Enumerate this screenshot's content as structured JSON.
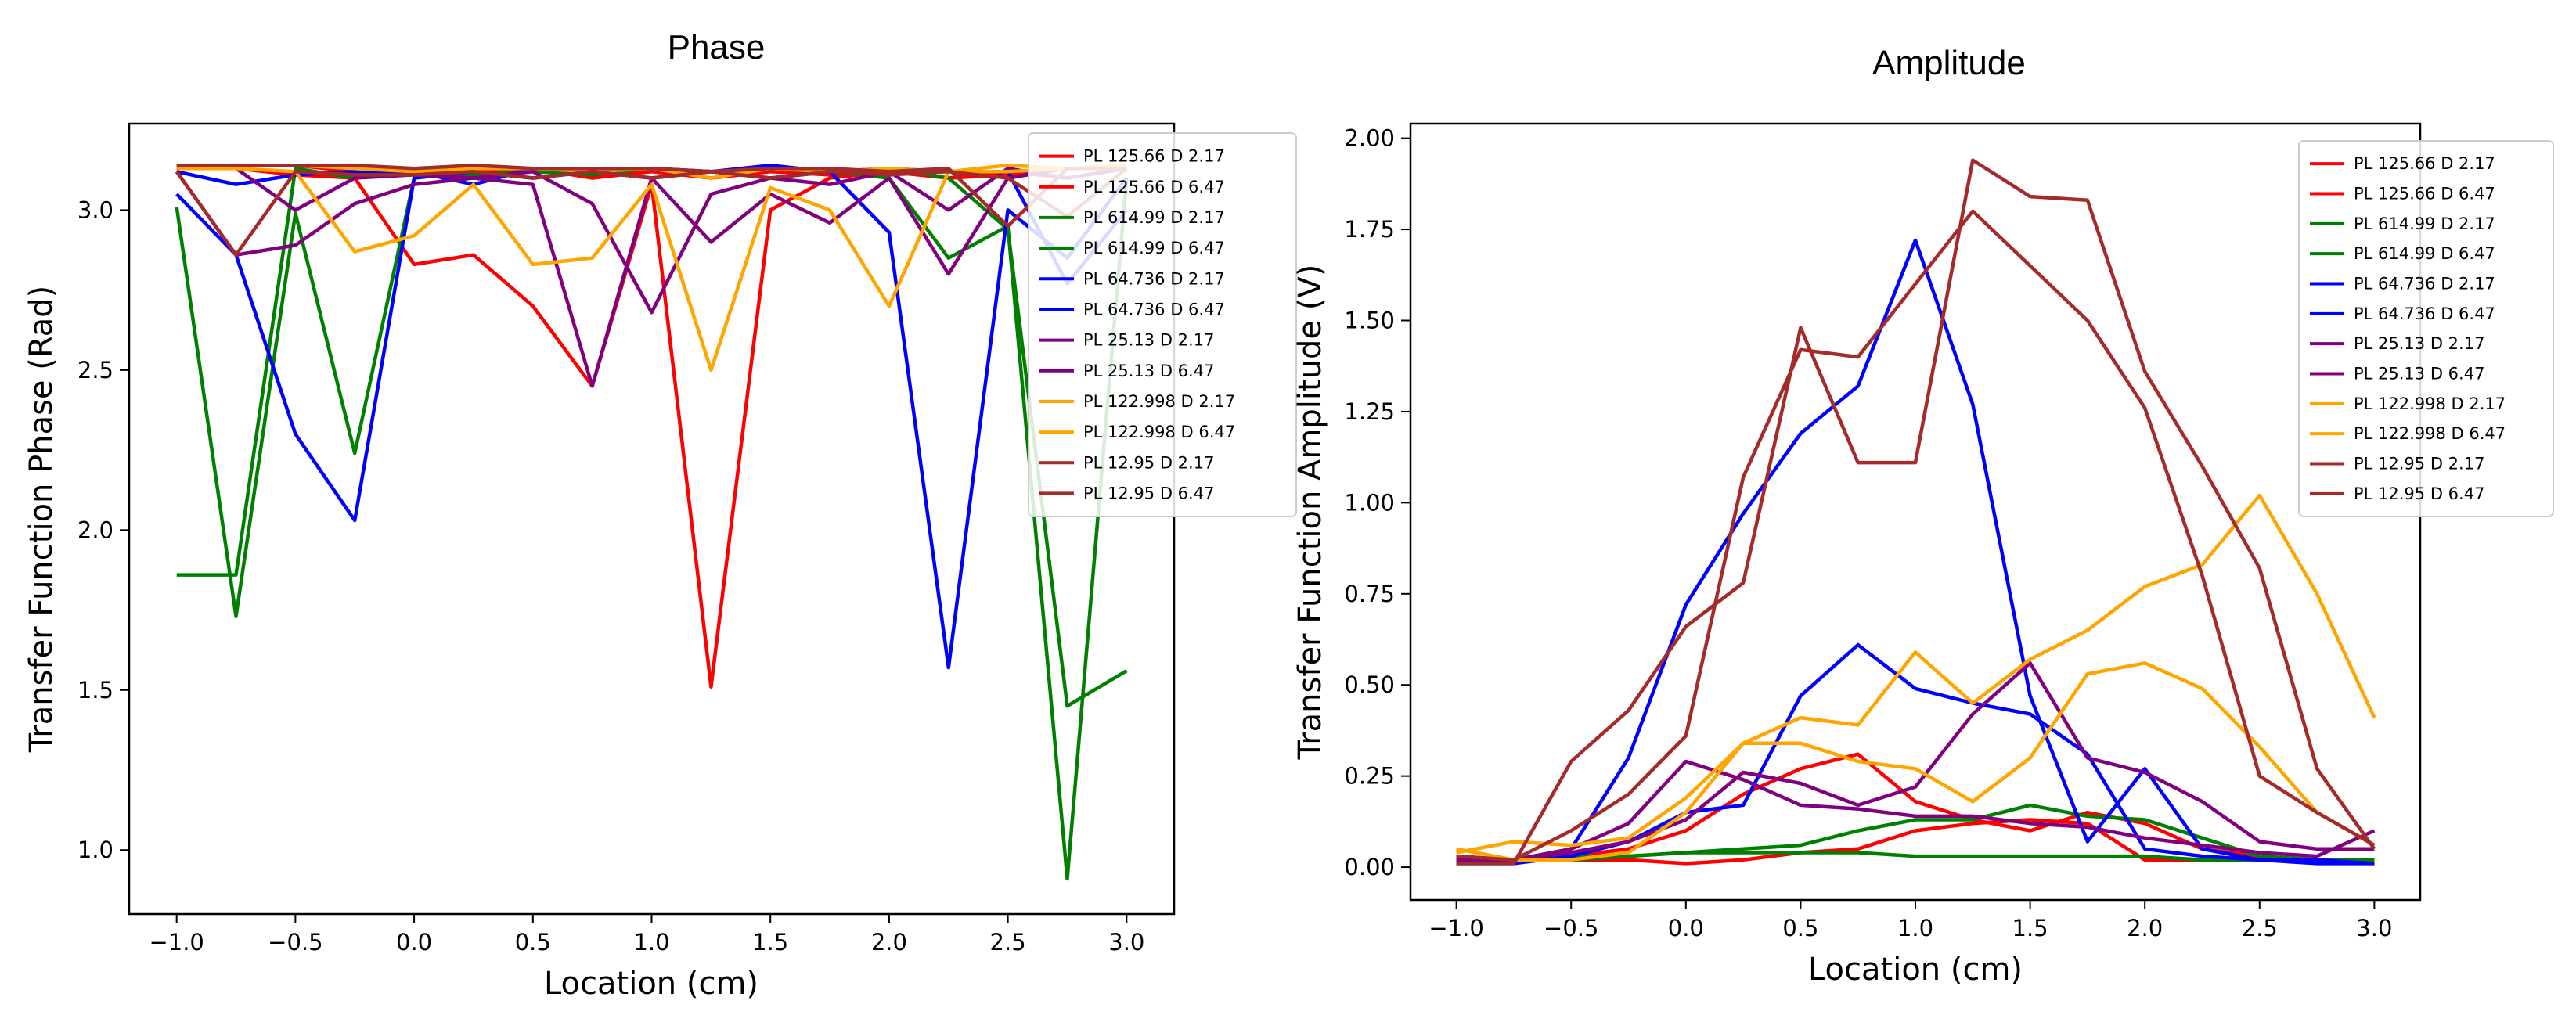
{
  "chart_data": [
    {
      "type": "line",
      "title": "Phase",
      "xlabel": "Location (cm)",
      "ylabel": "Transfer Function Phase (Rad)",
      "xlim": [
        -1.2,
        3.2
      ],
      "ylim": [
        0.8,
        3.27
      ],
      "xticks": [
        -1.0,
        -0.5,
        0.0,
        0.5,
        1.0,
        1.5,
        2.0,
        2.5,
        3.0
      ],
      "yticks": [
        1.0,
        1.5,
        2.0,
        2.5,
        3.0
      ],
      "tick_decimals": {
        "x": 1,
        "y": 1
      },
      "x": [
        -1.0,
        -0.75,
        -0.5,
        -0.25,
        0.0,
        0.25,
        0.5,
        0.75,
        1.0,
        1.25,
        1.5,
        1.75,
        2.0,
        2.25,
        2.5,
        2.75,
        3.0
      ],
      "legend_position": "top-right",
      "grid": false,
      "series": [
        {
          "name": "PL 125.66 D 2.17",
          "color": "#ff0000",
          "values": [
            3.13,
            3.13,
            3.11,
            3.1,
            2.83,
            2.86,
            2.7,
            2.45,
            3.08,
            1.51,
            3.0,
            3.1,
            3.12,
            3.1,
            3.11,
            3.13,
            3.13
          ]
        },
        {
          "name": "PL 125.66 D 6.47",
          "color": "#ff0000",
          "values": [
            3.14,
            3.14,
            3.14,
            3.12,
            3.13,
            3.12,
            3.13,
            3.1,
            3.12,
            3.1,
            3.12,
            3.11,
            3.12,
            3.1,
            3.12,
            3.1,
            3.13
          ]
        },
        {
          "name": "PL 614.99 D 2.17",
          "color": "#008000",
          "values": [
            3.01,
            1.73,
            2.99,
            2.24,
            3.1,
            3.12,
            3.1,
            3.12,
            3.1,
            3.12,
            3.1,
            3.12,
            3.1,
            2.85,
            2.95,
            0.91,
            3.1
          ]
        },
        {
          "name": "PL 614.99 D 6.47",
          "color": "#008000",
          "values": [
            1.86,
            1.86,
            3.13,
            3.1,
            3.12,
            3.11,
            3.12,
            3.11,
            3.13,
            3.12,
            3.13,
            3.12,
            3.13,
            3.1,
            2.94,
            1.45,
            1.56
          ]
        },
        {
          "name": "PL 64.736 D 2.17",
          "color": "#0000ff",
          "values": [
            3.05,
            2.86,
            2.3,
            2.03,
            3.1,
            3.12,
            3.1,
            3.12,
            3.1,
            3.12,
            3.1,
            3.12,
            2.93,
            1.57,
            3.0,
            2.85,
            3.1
          ]
        },
        {
          "name": "PL 64.736 D 6.47",
          "color": "#0000ff",
          "values": [
            3.12,
            3.08,
            3.11,
            3.12,
            3.12,
            3.08,
            3.13,
            3.12,
            3.13,
            3.12,
            3.14,
            3.12,
            3.13,
            3.12,
            3.12,
            2.77,
            3.0
          ]
        },
        {
          "name": "PL 25.13 D 2.17",
          "color": "#800080",
          "values": [
            3.12,
            2.86,
            2.89,
            3.02,
            3.08,
            3.1,
            3.08,
            2.45,
            3.1,
            2.9,
            3.05,
            2.96,
            3.1,
            2.8,
            3.1,
            3.13,
            3.13
          ]
        },
        {
          "name": "PL 25.13 D 6.47",
          "color": "#800080",
          "values": [
            3.14,
            3.13,
            3.0,
            3.1,
            3.11,
            3.1,
            3.12,
            3.02,
            2.68,
            3.05,
            3.1,
            3.08,
            3.12,
            3.0,
            3.13,
            3.1,
            3.13
          ]
        },
        {
          "name": "PL 122.998 D 2.17",
          "color": "#ffa500",
          "values": [
            3.13,
            3.13,
            3.12,
            2.87,
            2.92,
            3.08,
            2.83,
            2.85,
            3.08,
            2.5,
            3.07,
            3.0,
            2.7,
            3.12,
            3.12,
            3.13,
            3.13
          ]
        },
        {
          "name": "PL 122.998 D 6.47",
          "color": "#ffa500",
          "values": [
            3.14,
            3.14,
            3.14,
            3.13,
            3.12,
            3.13,
            3.13,
            3.12,
            3.13,
            3.1,
            3.13,
            3.12,
            3.13,
            3.12,
            3.14,
            3.13,
            3.14
          ]
        },
        {
          "name": "PL 12.95 D 2.17",
          "color": "#a52a2a",
          "values": [
            3.12,
            2.86,
            3.12,
            3.11,
            3.11,
            3.12,
            3.1,
            3.12,
            3.1,
            3.12,
            3.1,
            3.12,
            3.11,
            3.12,
            3.1,
            2.98,
            3.13
          ]
        },
        {
          "name": "PL 12.95 D 6.47",
          "color": "#a52a2a",
          "values": [
            3.14,
            3.14,
            3.14,
            3.14,
            3.13,
            3.14,
            3.13,
            3.13,
            3.13,
            3.12,
            3.13,
            3.13,
            3.12,
            3.13,
            2.95,
            3.13,
            3.13
          ]
        }
      ]
    },
    {
      "type": "line",
      "title": "Amplitude",
      "xlabel": "Location (cm)",
      "ylabel": "Transfer Function Amplitude (V)",
      "xlim": [
        -1.2,
        3.2
      ],
      "ylim": [
        -0.09,
        2.04
      ],
      "xticks": [
        -1.0,
        -0.5,
        0.0,
        0.5,
        1.0,
        1.5,
        2.0,
        2.5,
        3.0
      ],
      "yticks": [
        0.0,
        0.25,
        0.5,
        0.75,
        1.0,
        1.25,
        1.5,
        1.75,
        2.0
      ],
      "tick_decimals": {
        "x": 1,
        "y": 2
      },
      "x": [
        -1.0,
        -0.75,
        -0.5,
        -0.25,
        0.0,
        0.25,
        0.5,
        0.75,
        1.0,
        1.25,
        1.5,
        1.75,
        2.0,
        2.25,
        2.5,
        2.75,
        3.0
      ],
      "legend_position": "top-right",
      "grid": false,
      "series": [
        {
          "name": "PL 125.66 D 2.17",
          "color": "#ff0000",
          "values": [
            0.03,
            0.02,
            0.03,
            0.05,
            0.1,
            0.2,
            0.27,
            0.31,
            0.18,
            0.13,
            0.1,
            0.15,
            0.12,
            0.05,
            0.03,
            0.02,
            0.02
          ]
        },
        {
          "name": "PL 125.66 D 6.47",
          "color": "#ff0000",
          "values": [
            0.02,
            0.02,
            0.02,
            0.02,
            0.01,
            0.02,
            0.04,
            0.05,
            0.1,
            0.12,
            0.13,
            0.12,
            0.02,
            0.02,
            0.02,
            0.02,
            0.02
          ]
        },
        {
          "name": "PL 614.99 D 2.17",
          "color": "#008000",
          "values": [
            0.02,
            0.02,
            0.03,
            0.03,
            0.04,
            0.05,
            0.06,
            0.1,
            0.13,
            0.13,
            0.17,
            0.14,
            0.13,
            0.08,
            0.03,
            0.02,
            0.02
          ]
        },
        {
          "name": "PL 614.99 D 6.47",
          "color": "#008000",
          "values": [
            0.02,
            0.02,
            0.02,
            0.03,
            0.04,
            0.04,
            0.04,
            0.04,
            0.03,
            0.03,
            0.03,
            0.03,
            0.03,
            0.02,
            0.02,
            0.02,
            0.02
          ]
        },
        {
          "name": "PL 64.736 D 2.17",
          "color": "#0000ff",
          "values": [
            0.01,
            0.02,
            0.05,
            0.3,
            0.72,
            0.97,
            1.19,
            1.32,
            1.72,
            1.27,
            0.47,
            0.07,
            0.27,
            0.05,
            0.02,
            0.01,
            0.01
          ]
        },
        {
          "name": "PL 64.736 D 6.47",
          "color": "#0000ff",
          "values": [
            0.01,
            0.01,
            0.03,
            0.07,
            0.15,
            0.17,
            0.47,
            0.61,
            0.49,
            0.45,
            0.42,
            0.31,
            0.05,
            0.03,
            0.02,
            0.02,
            0.01
          ]
        },
        {
          "name": "PL 25.13 D 2.17",
          "color": "#800080",
          "values": [
            0.03,
            0.02,
            0.05,
            0.12,
            0.29,
            0.24,
            0.17,
            0.16,
            0.14,
            0.14,
            0.12,
            0.11,
            0.08,
            0.06,
            0.04,
            0.03,
            0.1
          ]
        },
        {
          "name": "PL 25.13 D 6.47",
          "color": "#800080",
          "values": [
            0.02,
            0.02,
            0.04,
            0.07,
            0.13,
            0.26,
            0.23,
            0.17,
            0.22,
            0.42,
            0.56,
            0.3,
            0.26,
            0.18,
            0.07,
            0.05,
            0.05
          ]
        },
        {
          "name": "PL 122.998 D 2.17",
          "color": "#ffa500",
          "values": [
            0.05,
            0.02,
            0.02,
            0.04,
            0.15,
            0.34,
            0.41,
            0.39,
            0.59,
            0.45,
            0.57,
            0.65,
            0.77,
            0.83,
            1.02,
            0.75,
            0.41
          ]
        },
        {
          "name": "PL 122.998 D 6.47",
          "color": "#ffa500",
          "values": [
            0.04,
            0.07,
            0.06,
            0.08,
            0.19,
            0.34,
            0.34,
            0.29,
            0.27,
            0.18,
            0.3,
            0.53,
            0.56,
            0.49,
            0.33,
            0.15,
            0.06
          ]
        },
        {
          "name": "PL 12.95 D 2.17",
          "color": "#a52a2a",
          "values": [
            0.03,
            0.02,
            0.1,
            0.2,
            0.36,
            1.07,
            1.42,
            1.4,
            1.6,
            1.8,
            1.65,
            1.5,
            1.26,
            0.8,
            0.25,
            0.15,
            0.06
          ]
        },
        {
          "name": "PL 12.95 D 6.47",
          "color": "#a52a2a",
          "values": [
            0.01,
            0.01,
            0.29,
            0.43,
            0.66,
            0.78,
            1.48,
            1.11,
            1.11,
            1.94,
            1.84,
            1.83,
            1.36,
            1.1,
            0.82,
            0.27,
            0.05
          ]
        }
      ]
    }
  ]
}
